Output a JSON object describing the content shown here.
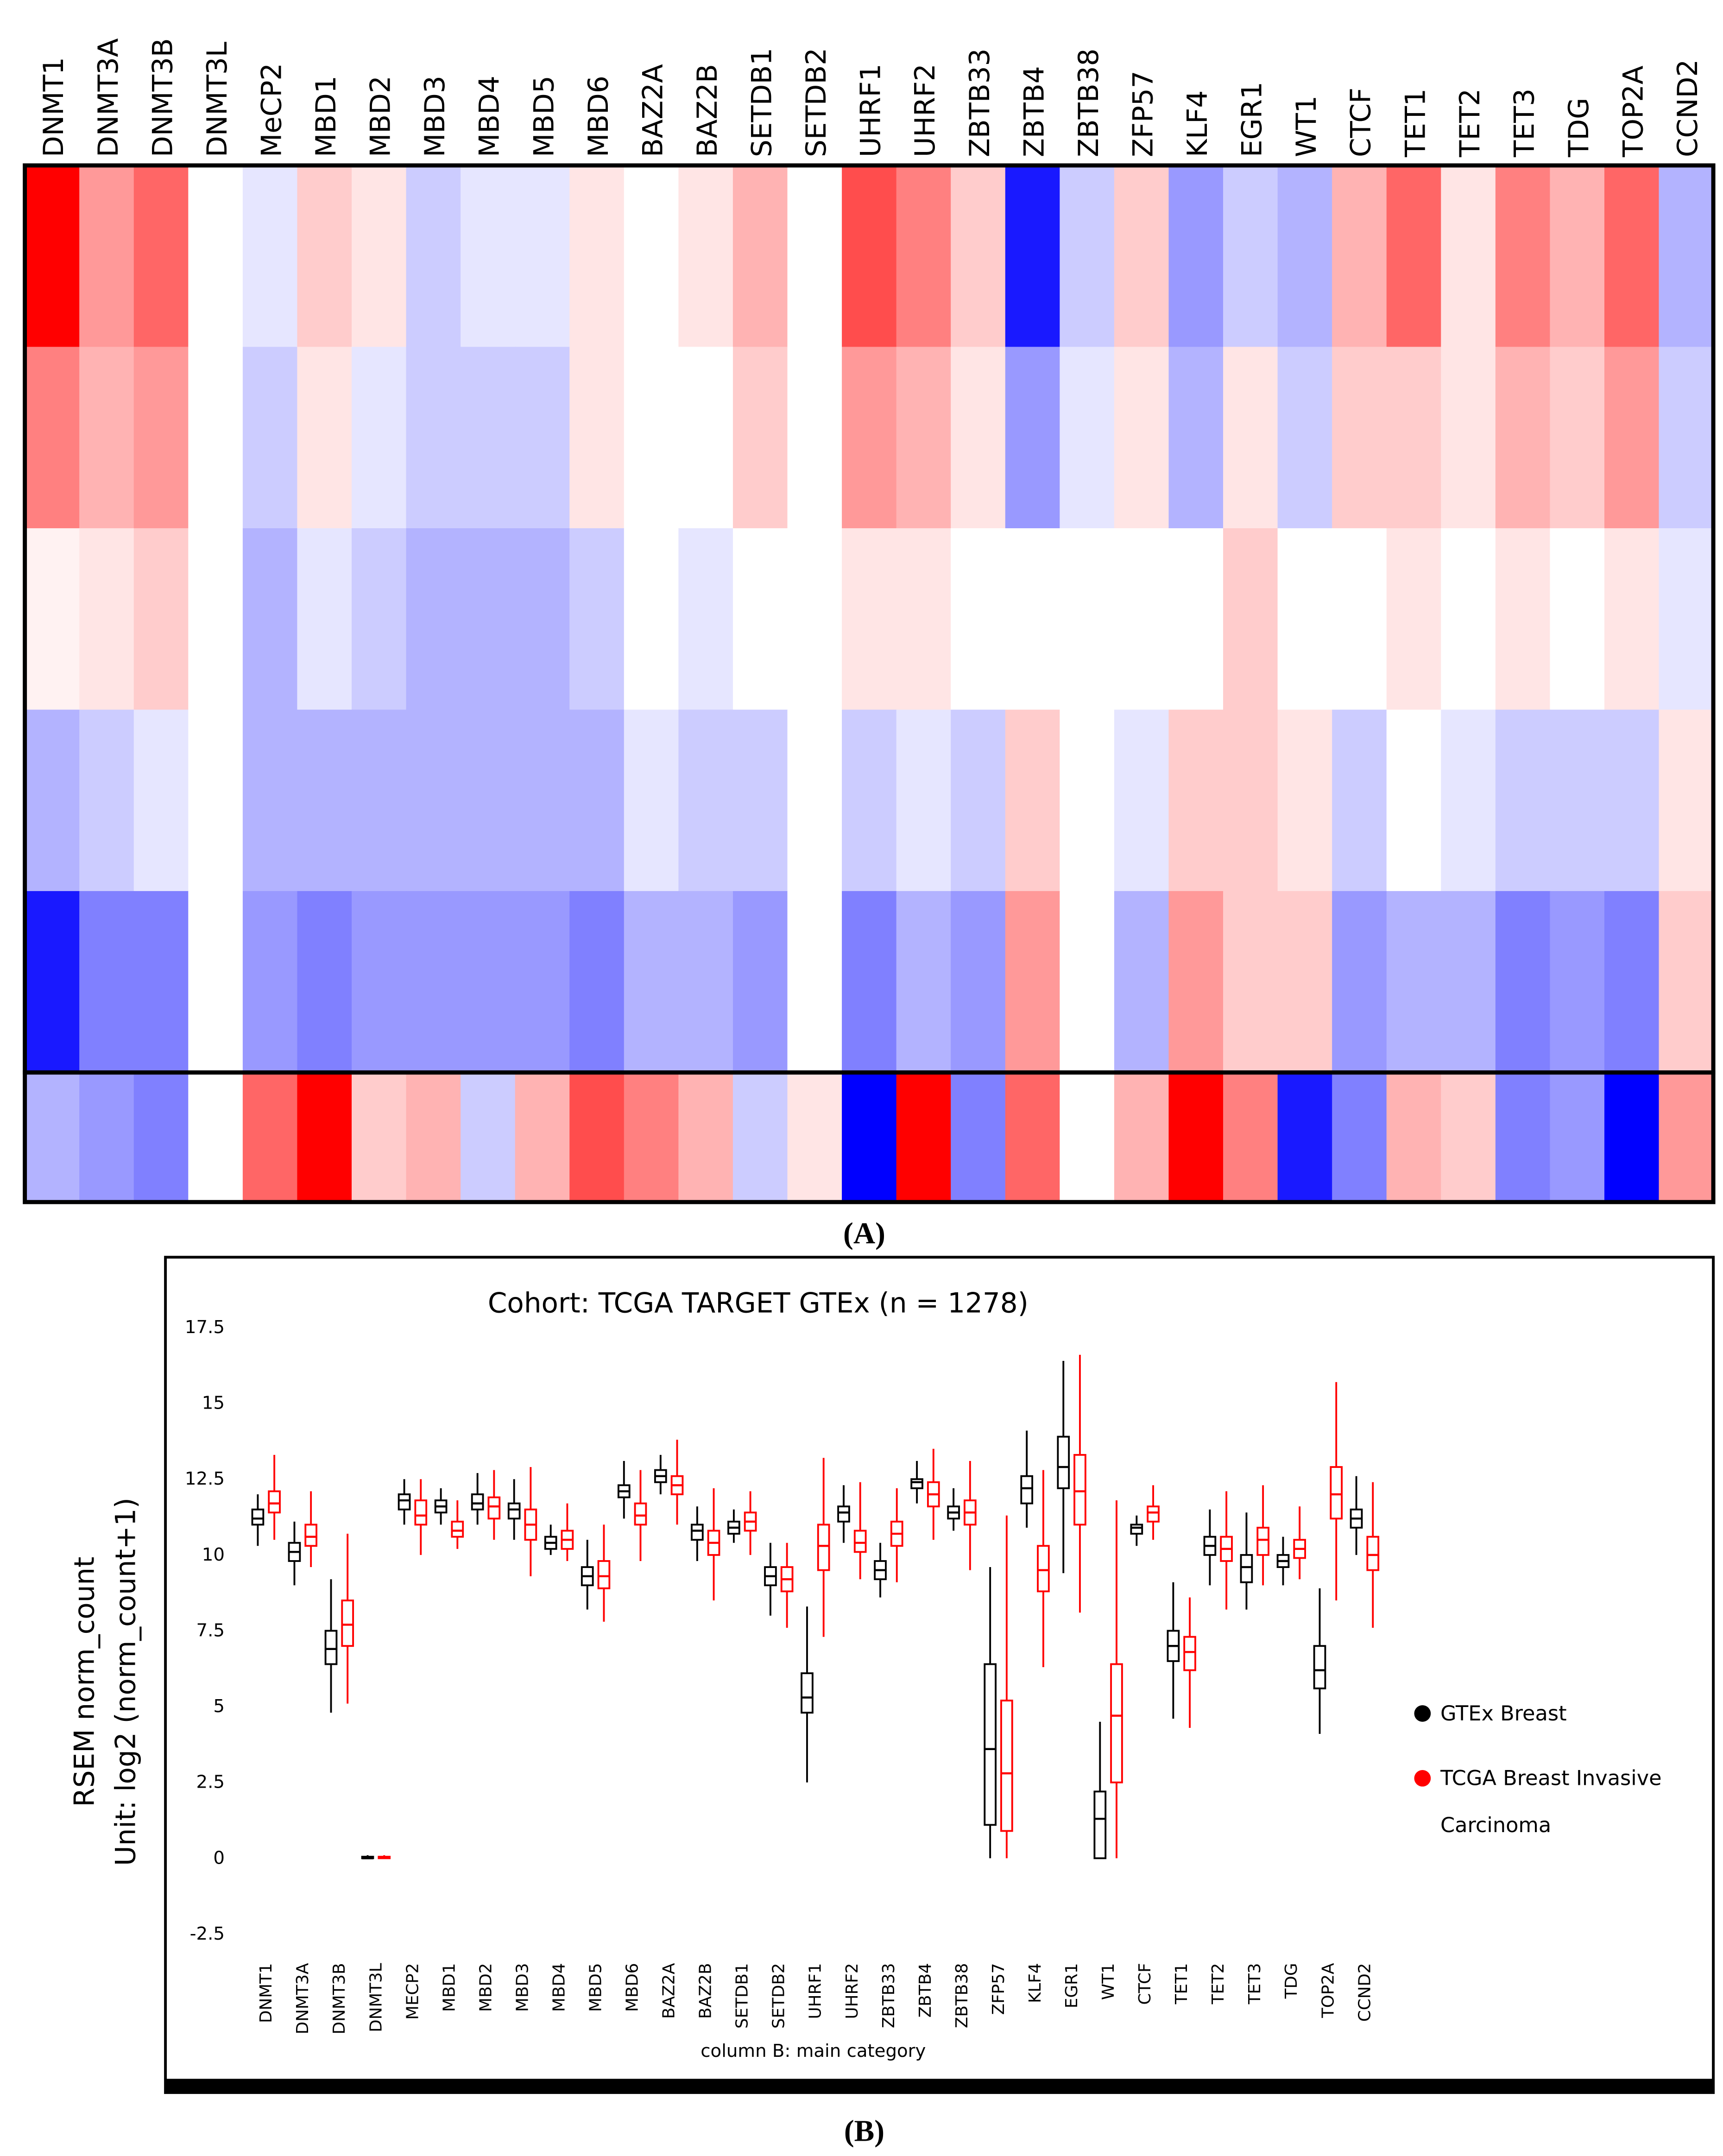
{
  "chart_data": [
    {
      "type": "heatmap",
      "caption": "(A)",
      "columns": [
        "DNMT1",
        "DNMT3A",
        "DNMT3B",
        "DNMT3L",
        "MeCP2",
        "MBD1",
        "MBD2",
        "MBD3",
        "MBD4",
        "MBD5",
        "MBD6",
        "BAZ2A",
        "BAZ2B",
        "SETDB1",
        "SETDB2",
        "UHRF1",
        "UHRF2",
        "ZBTB33",
        "ZBTB4",
        "ZBTB38",
        "ZFP57",
        "KLF4",
        "EGR1",
        "WT1",
        "CTCF",
        "TET1",
        "TET2",
        "TET3",
        "TDG",
        "TOP2A",
        "CCND2"
      ],
      "zlim": [
        -1,
        1
      ],
      "colors": [
        "#0000ff",
        "#ffffff",
        "#ff0000"
      ],
      "rows": [
        [
          1,
          0.4,
          0.6,
          0,
          -0.1,
          0.2,
          0.1,
          -0.2,
          -0.1,
          -0.1,
          0.1,
          0,
          0.1,
          0.3,
          0,
          0.7,
          0.5,
          0.2,
          -0.9,
          -0.2,
          0.2,
          -0.4,
          -0.2,
          -0.3,
          0.3,
          0.6,
          0.1,
          0.5,
          0.3,
          0.6,
          -0.3
        ],
        [
          0.5,
          0.3,
          0.4,
          0,
          -0.2,
          0.1,
          -0.1,
          -0.2,
          -0.2,
          -0.2,
          0.1,
          0,
          0,
          0.2,
          0,
          0.4,
          0.3,
          0.1,
          -0.4,
          -0.1,
          0.1,
          -0.3,
          0.1,
          -0.2,
          0.2,
          0.2,
          0.1,
          0.3,
          0.2,
          0.4,
          -0.2
        ],
        [
          0.05,
          0.1,
          0.2,
          0,
          -0.3,
          -0.1,
          -0.2,
          -0.3,
          -0.3,
          -0.3,
          -0.2,
          0,
          -0.1,
          0,
          0,
          0.1,
          0.1,
          0,
          0,
          0,
          0,
          0,
          0.2,
          0,
          0,
          0.1,
          0,
          0.1,
          0,
          0.1,
          -0.1
        ],
        [
          -0.3,
          -0.2,
          -0.1,
          0,
          -0.3,
          -0.3,
          -0.3,
          -0.3,
          -0.3,
          -0.3,
          -0.3,
          -0.1,
          -0.2,
          -0.2,
          0,
          -0.2,
          -0.1,
          -0.2,
          0.2,
          0,
          -0.1,
          0.2,
          0.2,
          0.1,
          -0.2,
          0,
          -0.1,
          -0.2,
          -0.2,
          -0.2,
          0.1
        ],
        [
          -0.9,
          -0.5,
          -0.5,
          0,
          -0.4,
          -0.5,
          -0.4,
          -0.4,
          -0.4,
          -0.4,
          -0.5,
          -0.3,
          -0.3,
          -0.4,
          0,
          -0.5,
          -0.3,
          -0.4,
          0.4,
          0,
          -0.3,
          0.4,
          0.2,
          0.2,
          -0.4,
          -0.3,
          -0.3,
          -0.5,
          -0.4,
          -0.5,
          0.2
        ]
      ],
      "bottom_rows": [
        [
          -0.3,
          -0.4,
          -0.5,
          0,
          0.6,
          1,
          0.2,
          0.3,
          -0.2,
          0.3,
          0.7,
          0.5,
          0.3,
          -0.2,
          0.1,
          -1,
          1,
          -0.5,
          0.6,
          0,
          0.3,
          1,
          0.5,
          -0.9,
          -0.5,
          0.3,
          0.2,
          -0.5,
          -0.4,
          -1,
          0.4
        ]
      ]
    },
    {
      "type": "box",
      "title": "Cohort: TCGA TARGET GTEx (n = 1278)",
      "caption": "(B)",
      "ylabel": [
        "RSEM norm_count",
        "Unit: log2 (norm_count+1)"
      ],
      "xlabel": "column B: main category",
      "categories": [
        "DNMT1",
        "DNMT3A",
        "DNMT3B",
        "DNMT3L",
        "MECP2",
        "MBD1",
        "MBD2",
        "MBD3",
        "MBD4",
        "MBD5",
        "MBD6",
        "BAZ2A",
        "BAZ2B",
        "SETDB1",
        "SETDB2",
        "UHRF1",
        "UHRF2",
        "ZBTB33",
        "ZBTB4",
        "ZBTB38",
        "ZFP57",
        "KLF4",
        "EGR1",
        "WT1",
        "CTCF",
        "TET1",
        "TET2",
        "TET3",
        "TDG",
        "TOP2A",
        "CCND2"
      ],
      "ylim": [
        -3.6,
        18.2
      ],
      "yticks": [
        -2.5,
        0,
        2.5,
        5,
        7.5,
        10,
        12.5,
        15,
        17.5
      ],
      "series": [
        {
          "name": "GTEx Breast",
          "color": "#000000",
          "values": [
            [
              10.3,
              11,
              11.2,
              11.5,
              12
            ],
            [
              9,
              9.8,
              10.1,
              10.4,
              11.1
            ],
            [
              4.8,
              6.4,
              6.9,
              7.5,
              9.2
            ],
            [
              0,
              0,
              0,
              0.05,
              0.1
            ],
            [
              11,
              11.5,
              11.8,
              12,
              12.5
            ],
            [
              11,
              11.4,
              11.6,
              11.8,
              12.2
            ],
            [
              11,
              11.5,
              11.7,
              12,
              12.7
            ],
            [
              10.5,
              11.2,
              11.5,
              11.7,
              12.5
            ],
            [
              10,
              10.2,
              10.4,
              10.6,
              11
            ],
            [
              8.2,
              9,
              9.3,
              9.6,
              10.5
            ],
            [
              11.2,
              11.9,
              12.1,
              12.3,
              13.1
            ],
            [
              12,
              12.4,
              12.6,
              12.8,
              13.3
            ],
            [
              9.8,
              10.5,
              10.8,
              11,
              11.6
            ],
            [
              10.4,
              10.7,
              10.9,
              11.1,
              11.5
            ],
            [
              8,
              9,
              9.3,
              9.6,
              10.4
            ],
            [
              2.5,
              4.8,
              5.3,
              6.1,
              8.3
            ],
            [
              10.4,
              11.1,
              11.4,
              11.6,
              12.3
            ],
            [
              8.6,
              9.2,
              9.5,
              9.8,
              10.4
            ],
            [
              11.7,
              12.2,
              12.4,
              12.5,
              13.1
            ],
            [
              10.8,
              11.2,
              11.4,
              11.6,
              12.2
            ],
            [
              0,
              1.1,
              3.6,
              6.4,
              9.6
            ],
            [
              10.9,
              11.7,
              12.2,
              12.6,
              14.1
            ],
            [
              9.4,
              12.2,
              12.9,
              13.9,
              16.4
            ],
            [
              0,
              0,
              1.3,
              2.2,
              4.5
            ],
            [
              10.3,
              10.7,
              10.9,
              11,
              11.3
            ],
            [
              4.6,
              6.5,
              7,
              7.5,
              9.1
            ],
            [
              9,
              10,
              10.3,
              10.6,
              11.5
            ],
            [
              8.2,
              9.1,
              9.6,
              10,
              11.4
            ],
            [
              9,
              9.6,
              9.8,
              10,
              10.6
            ],
            [
              4.1,
              5.6,
              6.2,
              7,
              8.9
            ],
            [
              10,
              10.9,
              11.2,
              11.5,
              12.6
            ]
          ]
        },
        {
          "name": "TCGA Breast Invasive Carcinoma",
          "color": "#ff0000",
          "values": [
            [
              10.5,
              11.4,
              11.7,
              12.1,
              13.3
            ],
            [
              9.6,
              10.3,
              10.6,
              11,
              12.1
            ],
            [
              5.1,
              7,
              7.7,
              8.5,
              10.7
            ],
            [
              0,
              0,
              0.02,
              0.05,
              0.1
            ],
            [
              10,
              11,
              11.3,
              11.8,
              12.5
            ],
            [
              10.2,
              10.6,
              10.8,
              11.1,
              11.8
            ],
            [
              10.5,
              11.2,
              11.6,
              11.9,
              12.8
            ],
            [
              9.3,
              10.5,
              11,
              11.5,
              12.9
            ],
            [
              9.8,
              10.2,
              10.5,
              10.8,
              11.7
            ],
            [
              7.8,
              8.9,
              9.3,
              9.8,
              11
            ],
            [
              9.8,
              11,
              11.3,
              11.7,
              12.8
            ],
            [
              11,
              12,
              12.3,
              12.6,
              13.8
            ],
            [
              8.5,
              10,
              10.4,
              10.8,
              12.2
            ],
            [
              10,
              10.8,
              11.1,
              11.4,
              12.1
            ],
            [
              7.6,
              8.8,
              9.2,
              9.6,
              10.4
            ],
            [
              7.3,
              9.5,
              10.3,
              11,
              13.2
            ],
            [
              9.2,
              10.1,
              10.4,
              10.8,
              12.4
            ],
            [
              9.1,
              10.3,
              10.7,
              11.1,
              12.2
            ],
            [
              10.5,
              11.6,
              12,
              12.4,
              13.5
            ],
            [
              9.5,
              11,
              11.4,
              11.8,
              13.1
            ],
            [
              0,
              0.9,
              2.8,
              5.2,
              11.3
            ],
            [
              6.3,
              8.8,
              9.5,
              10.3,
              12.8
            ],
            [
              8.1,
              11,
              12.1,
              13.3,
              16.6
            ],
            [
              0,
              2.5,
              4.7,
              6.4,
              11.8
            ],
            [
              10.5,
              11.1,
              11.4,
              11.6,
              12.3
            ],
            [
              4.3,
              6.2,
              6.8,
              7.3,
              8.6
            ],
            [
              8.2,
              9.8,
              10.2,
              10.6,
              12.1
            ],
            [
              9,
              10,
              10.5,
              10.9,
              12.3
            ],
            [
              9.2,
              9.9,
              10.2,
              10.5,
              11.6
            ],
            [
              8.5,
              11.2,
              12,
              12.9,
              15.7
            ],
            [
              7.6,
              9.5,
              10,
              10.6,
              12.4
            ]
          ]
        }
      ]
    }
  ]
}
